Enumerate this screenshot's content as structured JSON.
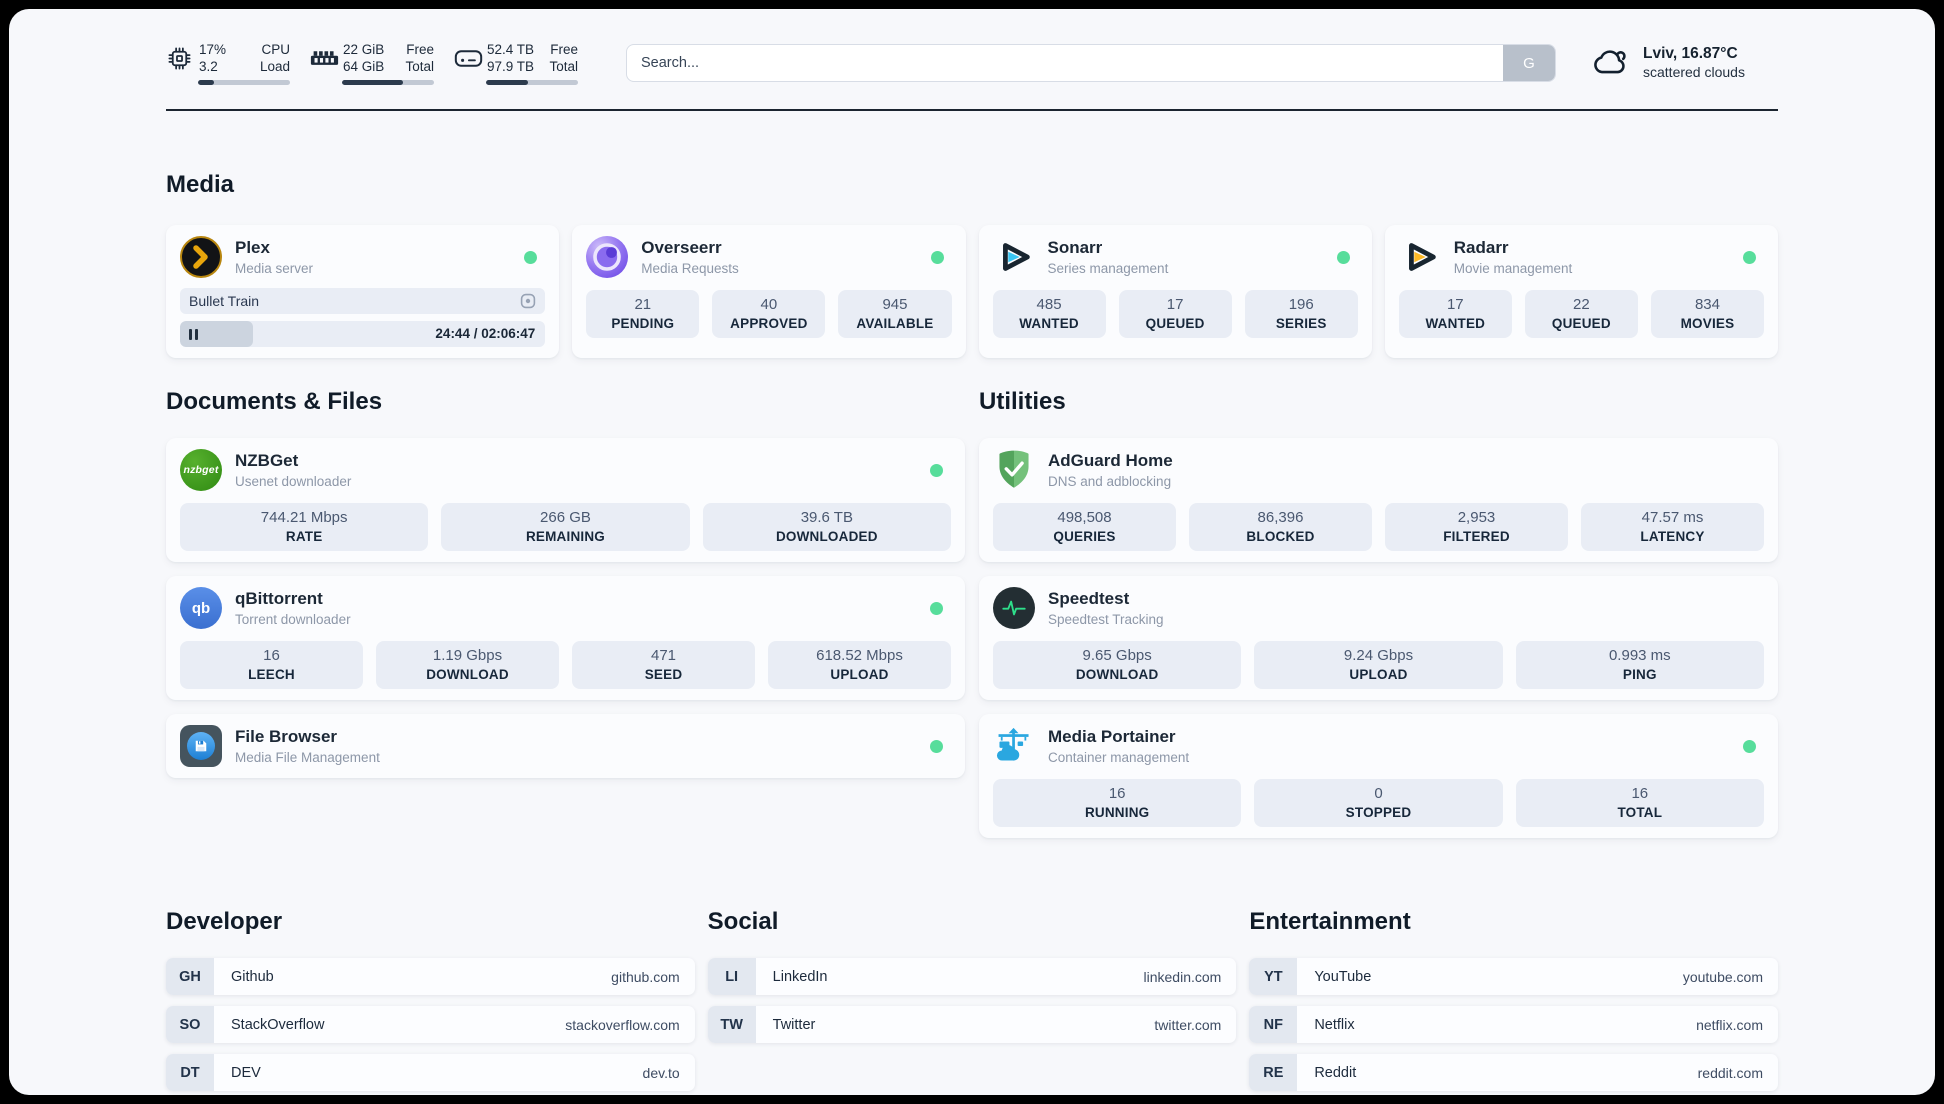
{
  "colors": {
    "status_online": "#57dd9b",
    "accent_dark": "#1c2a3a"
  },
  "icons": [
    "cpu-icon",
    "memory-icon",
    "storage-icon",
    "search-submit-button",
    "cloud-icon",
    "plex-icon",
    "overseerr-icon",
    "sonarr-icon",
    "radarr-icon",
    "nzbget-icon",
    "qbittorrent-icon",
    "filebrowser-icon",
    "adguard-icon",
    "speedtest-icon",
    "portainer-icon",
    "pause-icon",
    "session-icon"
  ],
  "header": {
    "system_stats": [
      {
        "name": "cpu",
        "value_top": "17%",
        "value_bottom": "3.2",
        "label_top": "CPU",
        "label_bottom": "Load",
        "progress_pct": 17
      },
      {
        "name": "memory",
        "value_top": "22 GiB",
        "value_bottom": "64 GiB",
        "label_top": "Free",
        "label_bottom": "Total",
        "progress_pct": 66
      },
      {
        "name": "storage",
        "value_top": "52.4 TB",
        "value_bottom": "97.9 TB",
        "label_top": "Free",
        "label_bottom": "Total",
        "progress_pct": 46
      }
    ],
    "search": {
      "placeholder": "Search...",
      "button_label": "G"
    },
    "weather": {
      "location": "Lviv, 16.87°C",
      "condition": "scattered clouds"
    }
  },
  "sections": {
    "media": {
      "title": "Media",
      "apps": [
        {
          "name": "Plex",
          "description": "Media server",
          "online": true,
          "player": {
            "now_playing": "Bullet Train",
            "time": "24:44 / 02:06:47",
            "progress_pct": 20,
            "state": "paused"
          }
        },
        {
          "name": "Overseerr",
          "description": "Media Requests",
          "online": true,
          "stats": [
            {
              "value": "21",
              "label": "PENDING"
            },
            {
              "value": "40",
              "label": "APPROVED"
            },
            {
              "value": "945",
              "label": "AVAILABLE"
            }
          ]
        },
        {
          "name": "Sonarr",
          "description": "Series management",
          "online": true,
          "stats": [
            {
              "value": "485",
              "label": "WANTED"
            },
            {
              "value": "17",
              "label": "QUEUED"
            },
            {
              "value": "196",
              "label": "SERIES"
            }
          ]
        },
        {
          "name": "Radarr",
          "description": "Movie management",
          "online": true,
          "stats": [
            {
              "value": "17",
              "label": "WANTED"
            },
            {
              "value": "22",
              "label": "QUEUED"
            },
            {
              "value": "834",
              "label": "MOVIES"
            }
          ]
        }
      ]
    },
    "documents": {
      "title": "Documents & Files",
      "apps": [
        {
          "name": "NZBGet",
          "description": "Usenet downloader",
          "online": true,
          "icon_text": "nzbget",
          "stats": [
            {
              "value": "744.21 Mbps",
              "label": "RATE"
            },
            {
              "value": "266 GB",
              "label": "REMAINING"
            },
            {
              "value": "39.6 TB",
              "label": "DOWNLOADED"
            }
          ]
        },
        {
          "name": "qBittorrent",
          "description": "Torrent downloader",
          "online": true,
          "icon_text": "qb",
          "stats": [
            {
              "value": "16",
              "label": "LEECH"
            },
            {
              "value": "1.19 Gbps",
              "label": "DOWNLOAD"
            },
            {
              "value": "471",
              "label": "SEED"
            },
            {
              "value": "618.52 Mbps",
              "label": "UPLOAD"
            }
          ]
        },
        {
          "name": "File Browser",
          "description": "Media File Management",
          "online": true
        }
      ]
    },
    "utilities": {
      "title": "Utilities",
      "apps": [
        {
          "name": "AdGuard Home",
          "description": "DNS and adblocking",
          "stats": [
            {
              "value": "498,508",
              "label": "QUERIES"
            },
            {
              "value": "86,396",
              "label": "BLOCKED"
            },
            {
              "value": "2,953",
              "label": "FILTERED"
            },
            {
              "value": "47.57 ms",
              "label": "LATENCY"
            }
          ]
        },
        {
          "name": "Speedtest",
          "description": "Speedtest Tracking",
          "stats": [
            {
              "value": "9.65 Gbps",
              "label": "DOWNLOAD"
            },
            {
              "value": "9.24 Gbps",
              "label": "UPLOAD"
            },
            {
              "value": "0.993 ms",
              "label": "PING"
            }
          ]
        },
        {
          "name": "Media Portainer",
          "description": "Container management",
          "online": true,
          "stats": [
            {
              "value": "16",
              "label": "RUNNING"
            },
            {
              "value": "0",
              "label": "STOPPED"
            },
            {
              "value": "16",
              "label": "TOTAL"
            }
          ]
        }
      ]
    },
    "developer": {
      "title": "Developer",
      "links": [
        {
          "tag": "GH",
          "name": "Github",
          "url": "github.com"
        },
        {
          "tag": "SO",
          "name": "StackOverflow",
          "url": "stackoverflow.com"
        },
        {
          "tag": "DT",
          "name": "DEV",
          "url": "dev.to"
        }
      ]
    },
    "social": {
      "title": "Social",
      "links": [
        {
          "tag": "LI",
          "name": "LinkedIn",
          "url": "linkedin.com"
        },
        {
          "tag": "TW",
          "name": "Twitter",
          "url": "twitter.com"
        }
      ]
    },
    "entertainment": {
      "title": "Entertainment",
      "links": [
        {
          "tag": "YT",
          "name": "YouTube",
          "url": "youtube.com"
        },
        {
          "tag": "NF",
          "name": "Netflix",
          "url": "netflix.com"
        },
        {
          "tag": "RE",
          "name": "Reddit",
          "url": "reddit.com"
        }
      ]
    }
  }
}
